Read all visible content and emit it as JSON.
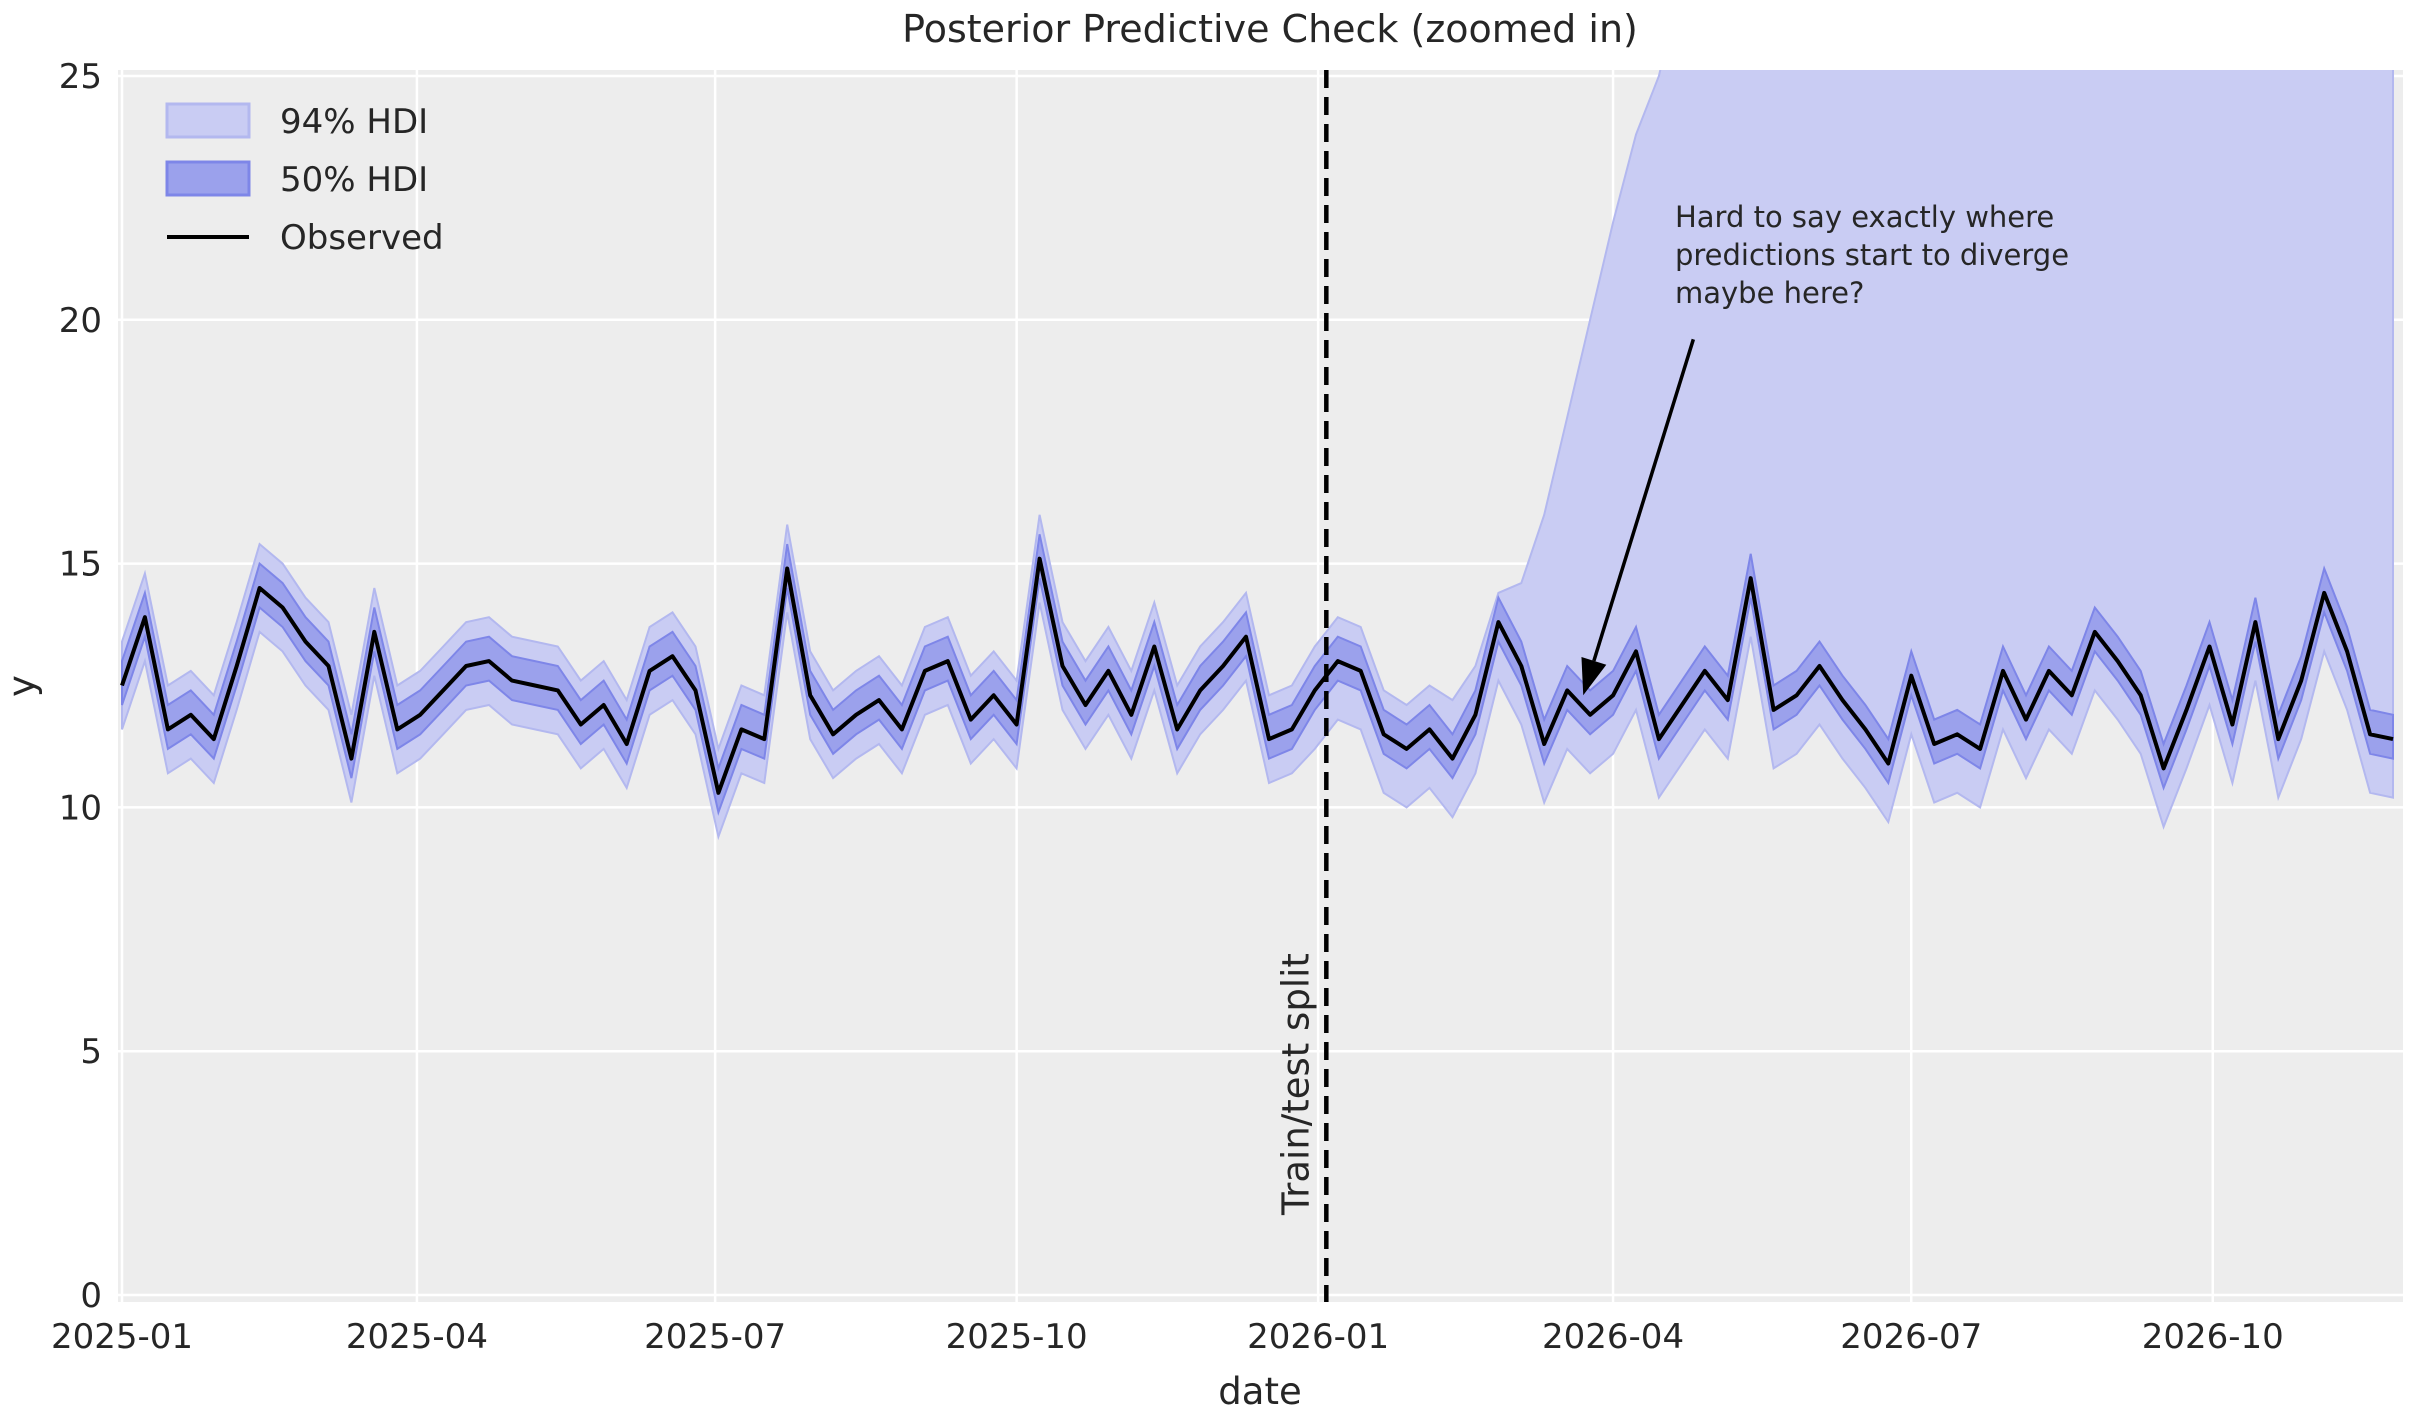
{
  "title": "Posterior Predictive Check (zoomed in)",
  "chart_data": {
    "type": "line",
    "xlabel": "date",
    "ylabel": "y",
    "ylim": [
      0,
      25.1
    ],
    "grid": true,
    "x_start_date": "2025-01-01",
    "x_step_days": 7,
    "x_tick_labels": [
      "2025-01",
      "2025-04",
      "2025-07",
      "2025-10",
      "2026-01",
      "2026-04",
      "2026-07",
      "2026-10"
    ],
    "x_tick_week_offsets": [
      0,
      12.857,
      25.857,
      39.0,
      52.143,
      65.0,
      78.0,
      91.143
    ],
    "y_tick_labels": [
      "0",
      "5",
      "10",
      "15",
      "20",
      "25"
    ],
    "y_tick_values": [
      0,
      5,
      10,
      15,
      20,
      25
    ],
    "observed": [
      12.5,
      13.9,
      11.6,
      11.9,
      11.4,
      12.9,
      14.5,
      14.1,
      13.4,
      12.9,
      11.0,
      13.6,
      11.6,
      11.9,
      12.4,
      12.9,
      13.0,
      12.6,
      12.5,
      12.4,
      11.7,
      12.1,
      11.3,
      12.8,
      13.1,
      12.4,
      10.3,
      11.6,
      11.4,
      14.9,
      12.3,
      11.5,
      11.9,
      12.2,
      11.6,
      12.8,
      13.0,
      11.8,
      12.3,
      11.7,
      15.1,
      12.9,
      12.1,
      12.8,
      11.9,
      13.3,
      11.6,
      12.4,
      12.9,
      13.5,
      11.4,
      11.6,
      12.4,
      13.0,
      12.8,
      11.5,
      11.2,
      11.6,
      11.0,
      11.9,
      13.8,
      12.9,
      11.3,
      12.4,
      11.9,
      12.3,
      13.2,
      11.4,
      12.1,
      12.8,
      12.2,
      14.7,
      12.0,
      12.3,
      12.9,
      12.2,
      11.6,
      10.9,
      12.7,
      11.3,
      11.5,
      11.2,
      12.8,
      11.8,
      12.8,
      12.3,
      13.6,
      13.0,
      12.3,
      10.8,
      12.0,
      13.3,
      11.7,
      13.8,
      11.4,
      12.6,
      14.4,
      13.2,
      11.5,
      11.4
    ],
    "hdi50_lo": [
      12.1,
      13.5,
      11.2,
      11.5,
      11.0,
      12.5,
      14.1,
      13.7,
      13.0,
      12.5,
      10.6,
      13.2,
      11.2,
      11.5,
      12.0,
      12.5,
      12.6,
      12.2,
      12.1,
      12.0,
      11.3,
      11.7,
      10.9,
      12.4,
      12.7,
      12.0,
      9.9,
      11.2,
      11.0,
      14.5,
      11.9,
      11.1,
      11.5,
      11.8,
      11.2,
      12.4,
      12.6,
      11.4,
      11.9,
      11.3,
      14.7,
      12.5,
      11.7,
      12.4,
      11.5,
      12.9,
      11.2,
      12.0,
      12.5,
      13.1,
      11.0,
      11.2,
      12.0,
      12.6,
      12.4,
      11.1,
      10.8,
      11.2,
      10.6,
      11.5,
      13.4,
      12.5,
      10.9,
      12.0,
      11.5,
      11.9,
      12.8,
      11.0,
      11.7,
      12.4,
      11.8,
      14.3,
      11.6,
      11.9,
      12.5,
      11.8,
      11.2,
      10.5,
      12.3,
      10.9,
      11.1,
      10.8,
      12.4,
      11.4,
      12.4,
      11.9,
      13.2,
      12.6,
      11.9,
      10.4,
      11.6,
      12.9,
      11.3,
      13.4,
      11.0,
      12.2,
      14.0,
      12.8,
      11.1,
      11.0
    ],
    "hdi50_hi": [
      13.0,
      14.4,
      12.1,
      12.4,
      11.9,
      13.4,
      15.0,
      14.6,
      13.9,
      13.4,
      11.5,
      14.1,
      12.1,
      12.4,
      12.9,
      13.4,
      13.5,
      13.1,
      13.0,
      12.9,
      12.2,
      12.6,
      11.8,
      13.3,
      13.6,
      12.9,
      10.8,
      12.1,
      11.9,
      15.4,
      12.8,
      12.0,
      12.4,
      12.7,
      12.1,
      13.3,
      13.5,
      12.3,
      12.8,
      12.2,
      15.6,
      13.4,
      12.6,
      13.3,
      12.4,
      13.8,
      12.1,
      12.9,
      13.4,
      14.0,
      11.9,
      12.1,
      12.9,
      13.5,
      13.3,
      12.0,
      11.7,
      12.1,
      11.5,
      12.4,
      14.3,
      13.4,
      11.8,
      12.9,
      12.4,
      12.8,
      13.7,
      11.9,
      12.6,
      13.3,
      12.7,
      15.2,
      12.5,
      12.8,
      13.4,
      12.7,
      12.1,
      11.4,
      13.2,
      11.8,
      12.0,
      11.7,
      13.3,
      12.3,
      13.3,
      12.8,
      14.1,
      13.5,
      12.8,
      11.3,
      12.5,
      13.8,
      12.2,
      14.3,
      11.9,
      13.1,
      14.9,
      13.7,
      12.0,
      11.9
    ],
    "hdi94_lo": [
      11.6,
      13.0,
      10.7,
      11.0,
      10.5,
      12.0,
      13.6,
      13.2,
      12.5,
      12.0,
      10.1,
      12.7,
      10.7,
      11.0,
      11.5,
      12.0,
      12.1,
      11.7,
      11.6,
      11.5,
      10.8,
      11.2,
      10.4,
      11.9,
      12.2,
      11.5,
      9.4,
      10.7,
      10.5,
      14.0,
      11.4,
      10.6,
      11.0,
      11.3,
      10.7,
      11.9,
      12.1,
      10.9,
      11.4,
      10.8,
      14.2,
      12.0,
      11.2,
      11.9,
      11.0,
      12.4,
      10.7,
      11.5,
      12.0,
      12.6,
      10.5,
      10.7,
      11.2,
      11.8,
      11.6,
      10.3,
      10.0,
      10.4,
      9.8,
      10.7,
      12.6,
      11.7,
      10.1,
      11.2,
      10.7,
      11.1,
      12.0,
      10.2,
      10.9,
      11.6,
      11.0,
      13.5,
      10.8,
      11.1,
      11.7,
      11.0,
      10.4,
      9.7,
      11.5,
      10.1,
      10.3,
      10.0,
      11.6,
      10.6,
      11.6,
      11.1,
      12.4,
      11.8,
      11.1,
      9.6,
      10.8,
      12.1,
      10.5,
      12.6,
      10.2,
      11.4,
      13.2,
      12.0,
      10.3,
      10.2
    ],
    "hdi94_hi": [
      13.4,
      14.8,
      12.5,
      12.8,
      12.3,
      13.8,
      15.4,
      15.0,
      14.3,
      13.8,
      11.9,
      14.5,
      12.5,
      12.8,
      13.3,
      13.8,
      13.9,
      13.5,
      13.4,
      13.3,
      12.6,
      13.0,
      12.2,
      13.7,
      14.0,
      13.3,
      11.2,
      12.5,
      12.3,
      15.8,
      13.2,
      12.4,
      12.8,
      13.1,
      12.5,
      13.7,
      13.9,
      12.7,
      13.2,
      12.6,
      16.0,
      13.8,
      13.0,
      13.7,
      12.8,
      14.2,
      12.5,
      13.3,
      13.8,
      14.4,
      12.3,
      12.5,
      13.3,
      13.9,
      13.7,
      12.4,
      12.1,
      12.5,
      12.2,
      12.9,
      14.4,
      14.6,
      16.0,
      18.0,
      20.0,
      22.0,
      23.8,
      25.0,
      27.0,
      27.0,
      27.0,
      27.0,
      27.0,
      27.0,
      27.0,
      27.0,
      27.0,
      27.0,
      27.0,
      27.0,
      27.0,
      27.0,
      27.0,
      27.0,
      27.0,
      27.0,
      27.0,
      27.0,
      27.0,
      27.0,
      27.0,
      27.0,
      27.0,
      27.0,
      27.0,
      27.0,
      27.0,
      27.0,
      27.0,
      27.0
    ],
    "split": {
      "week": 52.5,
      "label": "Train/test split"
    },
    "annotation": {
      "lines": [
        "Hard to say exactly where",
        "predictions start to diverge",
        "maybe here?"
      ],
      "text_week": 67.7,
      "text_value": 21.9,
      "arrow_from_week": 68.5,
      "arrow_from_value": 19.6,
      "arrow_tip_week": 63.7,
      "arrow_tip_value": 12.3
    },
    "legend": [
      {
        "label": "94% HDI",
        "swatch": "patch",
        "fill": "#c9ccf3",
        "stroke": "#b3b8ef"
      },
      {
        "label": "50% HDI",
        "swatch": "patch",
        "fill": "#9ba1ec",
        "stroke": "#7e86e8"
      },
      {
        "label": "Observed",
        "swatch": "line",
        "stroke": "#000000"
      }
    ],
    "legend_position": "upper left",
    "colors": {
      "axes_bg": "#ededed",
      "grid": "#ffffff",
      "hdi94_fill": "#c9ccf3",
      "hdi94_edge": "#b3b8ef",
      "hdi50_fill": "#9ba1ec",
      "hdi50_edge": "#7e86e8",
      "observed_line": "#000000",
      "split_line": "#000000",
      "text": "#262626"
    }
  }
}
